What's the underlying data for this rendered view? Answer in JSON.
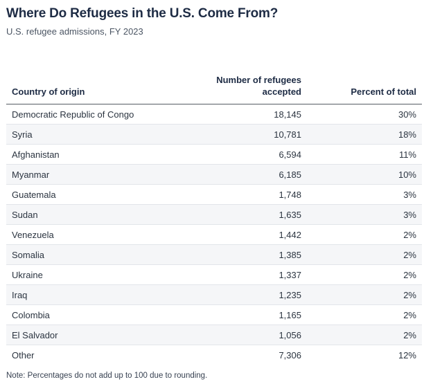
{
  "title": "Where Do Refugees in the U.S. Come From?",
  "subtitle": "U.S. refugee admissions, FY 2023",
  "note": "Note: Percentages do not add up to 100 due to rounding.",
  "chart_data": {
    "type": "table",
    "columns": [
      "Country of origin",
      "Number of refugees accepted",
      "Percent of total"
    ],
    "header_lines": {
      "col2_line1": "Number of refugees",
      "col2_line2": "accepted"
    },
    "rows": [
      [
        "Democratic Republic of Congo",
        "18,145",
        "30%"
      ],
      [
        "Syria",
        "10,781",
        "18%"
      ],
      [
        "Afghanistan",
        "6,594",
        "11%"
      ],
      [
        "Myanmar",
        "6,185",
        "10%"
      ],
      [
        "Guatemala",
        "1,748",
        "3%"
      ],
      [
        "Sudan",
        "1,635",
        "3%"
      ],
      [
        "Venezuela",
        "1,442",
        "2%"
      ],
      [
        "Somalia",
        "1,385",
        "2%"
      ],
      [
        "Ukraine",
        "1,337",
        "2%"
      ],
      [
        "Iraq",
        "1,235",
        "2%"
      ],
      [
        "Colombia",
        "1,165",
        "2%"
      ],
      [
        "El Salvador",
        "1,056",
        "2%"
      ],
      [
        "Other",
        "7,306",
        "12%"
      ]
    ]
  }
}
